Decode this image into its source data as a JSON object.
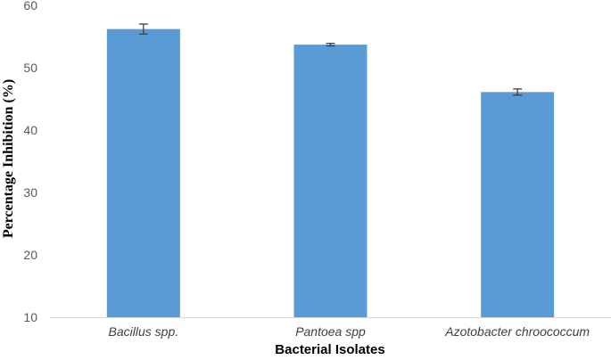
{
  "chart_data": {
    "type": "bar",
    "categories": [
      "Bacillus spp.",
      "Pantoea spp",
      "Azotobacter chroococcum"
    ],
    "values": [
      56.2,
      53.7,
      46.1
    ],
    "errors": [
      0.8,
      0.2,
      0.5
    ],
    "xlabel": "Bacterial Isolates",
    "ylabel": "Percentage Inhibition (%)",
    "ylim": [
      10,
      60
    ],
    "yticks": [
      10,
      20,
      30,
      40,
      50,
      60
    ],
    "grid": false,
    "bar_color": "#5b9bd5",
    "axis_color": "#d9d9d9",
    "error_color": "#404040"
  }
}
